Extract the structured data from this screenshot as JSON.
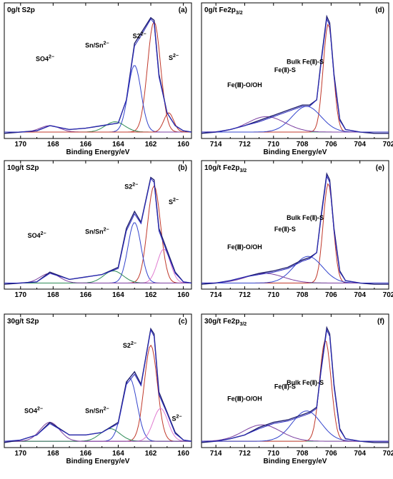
{
  "chart_data": [
    {
      "type": "line",
      "title": "0g/t S2p",
      "panel_letter": "(a)",
      "xlabel": "Binding Energy/eV",
      "xlim": [
        171,
        159.5
      ],
      "x_ticks": [
        "170",
        "168",
        "166",
        "164",
        "162",
        "160"
      ],
      "baseline": 0.05,
      "series": [
        {
          "color": "#1f1f6e",
          "role": "raw",
          "x": [
            171,
            170,
            169,
            168.2,
            167,
            166,
            165,
            164,
            163.5,
            163,
            162.6,
            162,
            161.8,
            161.5,
            161,
            160.5,
            160,
            159.5
          ],
          "y": [
            0.04,
            0.05,
            0.06,
            0.1,
            0.07,
            0.08,
            0.1,
            0.12,
            0.3,
            0.74,
            0.82,
            0.94,
            0.92,
            0.5,
            0.2,
            0.1,
            0.06,
            0.05
          ]
        },
        {
          "color": "#2b2bbf",
          "role": "fit",
          "x": [
            171,
            170,
            169,
            168.2,
            167,
            166,
            165,
            164,
            163.5,
            163,
            162.6,
            162,
            161.8,
            161.5,
            161,
            160.5,
            160,
            159.5
          ],
          "y": [
            0.05,
            0.05,
            0.06,
            0.1,
            0.07,
            0.08,
            0.1,
            0.12,
            0.3,
            0.72,
            0.8,
            0.93,
            0.9,
            0.48,
            0.2,
            0.1,
            0.06,
            0.05
          ]
        },
        {
          "color": "#c0392b",
          "role": "component",
          "peak": 161.8,
          "height": 0.86,
          "width": 0.4
        },
        {
          "color": "#3344cc",
          "role": "component",
          "peak": 163.0,
          "height": 0.52,
          "width": 0.4
        },
        {
          "color": "#2e8b57",
          "role": "component",
          "peak": 164.2,
          "height": 0.08,
          "width": 0.6
        },
        {
          "color": "#7b3fa0",
          "role": "component",
          "peak": 168.2,
          "height": 0.05,
          "width": 0.6
        },
        {
          "color": "#c0392b",
          "role": "component",
          "peak": 160.9,
          "height": 0.15,
          "width": 0.3
        }
      ],
      "annotations": [
        {
          "text": "SO4",
          "sup": "2−",
          "x": 168.5
        },
        {
          "text": "Sn/Sn",
          "sup": "2−",
          "x": 165.3
        },
        {
          "text": "S2",
          "sup": "2−",
          "x": 162.7
        },
        {
          "text": "S",
          "sup": "2−",
          "x": 160.6
        }
      ]
    },
    {
      "type": "line",
      "title": "10g/t S2p",
      "panel_letter": "(b)",
      "xlabel": "",
      "xlim": [
        171,
        159.5
      ],
      "x_ticks": [
        "170",
        "168",
        "166",
        "164",
        "162",
        "160"
      ],
      "baseline": 0.05,
      "series": [
        {
          "color": "#1f1f6e",
          "role": "raw",
          "x": [
            171,
            170,
            169,
            168.2,
            167,
            166,
            165,
            164,
            163.5,
            163,
            162.6,
            162,
            161.8,
            161.5,
            161,
            160.5,
            160,
            159.5
          ],
          "y": [
            0.04,
            0.05,
            0.06,
            0.14,
            0.08,
            0.1,
            0.12,
            0.18,
            0.5,
            0.64,
            0.55,
            0.92,
            0.9,
            0.5,
            0.32,
            0.14,
            0.06,
            0.05
          ]
        },
        {
          "color": "#2b2bbf",
          "role": "fit",
          "x": [
            171,
            170,
            169,
            168.2,
            167,
            166,
            165,
            164,
            163.5,
            163,
            162.6,
            162,
            161.8,
            161.5,
            161,
            160.5,
            160,
            159.5
          ],
          "y": [
            0.05,
            0.05,
            0.06,
            0.13,
            0.08,
            0.1,
            0.12,
            0.17,
            0.48,
            0.62,
            0.54,
            0.91,
            0.88,
            0.48,
            0.3,
            0.13,
            0.06,
            0.05
          ]
        },
        {
          "color": "#c0392b",
          "role": "component",
          "peak": 161.8,
          "height": 0.8,
          "width": 0.4
        },
        {
          "color": "#3344cc",
          "role": "component",
          "peak": 163.0,
          "height": 0.5,
          "width": 0.4
        },
        {
          "color": "#e07bd0",
          "role": "component",
          "peak": 161.2,
          "height": 0.28,
          "width": 0.4
        },
        {
          "color": "#2e8b57",
          "role": "component",
          "peak": 164.3,
          "height": 0.1,
          "width": 0.6
        },
        {
          "color": "#7b3fa0",
          "role": "component",
          "peak": 168.2,
          "height": 0.08,
          "width": 0.6
        }
      ],
      "annotations": [
        {
          "text": "SO4",
          "sup": "2−",
          "x": 169.0
        },
        {
          "text": "Sn/Sn",
          "sup": "2−",
          "x": 165.3
        },
        {
          "text": "S2",
          "sup": "2−",
          "x": 163.2
        },
        {
          "text": "S",
          "sup": "2−",
          "x": 160.6
        }
      ]
    },
    {
      "type": "line",
      "title": "30g/t S2p",
      "panel_letter": "(c)",
      "xlabel": "Binding Energy/eV",
      "xlim": [
        171,
        159.5
      ],
      "x_ticks": [
        "170",
        "168",
        "166",
        "164",
        "162",
        "160"
      ],
      "baseline": 0.05,
      "series": [
        {
          "color": "#1f1f6e",
          "role": "raw",
          "x": [
            171,
            170,
            169,
            168.2,
            167,
            166,
            165,
            164,
            163.5,
            163,
            162.6,
            162,
            161.8,
            161.5,
            161,
            160.5,
            160,
            159.5
          ],
          "y": [
            0.04,
            0.06,
            0.1,
            0.2,
            0.1,
            0.1,
            0.12,
            0.2,
            0.52,
            0.6,
            0.5,
            0.94,
            0.9,
            0.44,
            0.28,
            0.12,
            0.06,
            0.05
          ]
        },
        {
          "color": "#2b2bbf",
          "role": "fit",
          "x": [
            171,
            170,
            169,
            168.2,
            167,
            166,
            165,
            164,
            163.5,
            163,
            162.6,
            162,
            161.8,
            161.5,
            161,
            160.5,
            160,
            159.5
          ],
          "y": [
            0.05,
            0.06,
            0.1,
            0.19,
            0.1,
            0.1,
            0.12,
            0.19,
            0.5,
            0.58,
            0.49,
            0.93,
            0.88,
            0.42,
            0.27,
            0.11,
            0.06,
            0.05
          ]
        },
        {
          "color": "#c0392b",
          "role": "component",
          "peak": 162.0,
          "height": 0.76,
          "width": 0.4
        },
        {
          "color": "#3344cc",
          "role": "component",
          "peak": 163.3,
          "height": 0.5,
          "width": 0.45
        },
        {
          "color": "#e07bd0",
          "role": "component",
          "peak": 161.4,
          "height": 0.26,
          "width": 0.45
        },
        {
          "color": "#2e8b57",
          "role": "component",
          "peak": 164.5,
          "height": 0.1,
          "width": 0.6
        },
        {
          "color": "#7b3fa0",
          "role": "component",
          "peak": 168.2,
          "height": 0.15,
          "width": 0.6
        }
      ],
      "annotations": [
        {
          "text": "SO4",
          "sup": "2−",
          "x": 169.2
        },
        {
          "text": "Sn/Sn",
          "sup": "2−",
          "x": 165.3
        },
        {
          "text": "S2",
          "sup": "2−",
          "x": 163.3
        },
        {
          "text": "S",
          "sup": "2−",
          "x": 160.4
        }
      ]
    },
    {
      "type": "line",
      "title": "0g/t Fe2p",
      "title_sub": "3/2",
      "panel_letter": "(d)",
      "xlabel": "Binding Energy/eV",
      "xlim": [
        715,
        702
      ],
      "x_ticks": [
        "714",
        "712",
        "710",
        "708",
        "706",
        "704",
        "702"
      ],
      "baseline": 0.05,
      "series": [
        {
          "color": "#1f1f6e",
          "role": "raw",
          "x": [
            715,
            714,
            713,
            712,
            711,
            710,
            709,
            708,
            707.5,
            707,
            706.7,
            706.3,
            706.1,
            705.8,
            705.4,
            705,
            704,
            703,
            702
          ],
          "y": [
            0.04,
            0.05,
            0.07,
            0.1,
            0.14,
            0.18,
            0.22,
            0.26,
            0.26,
            0.3,
            0.6,
            0.95,
            0.9,
            0.5,
            0.15,
            0.07,
            0.05,
            0.04,
            0.04
          ]
        },
        {
          "color": "#2b2bbf",
          "role": "fit",
          "x": [
            715,
            714,
            713,
            712,
            711,
            710,
            709,
            708,
            707.5,
            707,
            706.7,
            706.3,
            706.1,
            705.8,
            705.4,
            705,
            704,
            703,
            702
          ],
          "y": [
            0.05,
            0.05,
            0.07,
            0.1,
            0.13,
            0.17,
            0.21,
            0.25,
            0.25,
            0.3,
            0.58,
            0.93,
            0.88,
            0.48,
            0.14,
            0.07,
            0.05,
            0.05,
            0.05
          ]
        },
        {
          "color": "#c0392b",
          "role": "component",
          "peak": 706.2,
          "height": 0.84,
          "width": 0.35
        },
        {
          "color": "#3344cc",
          "role": "component",
          "peak": 707.7,
          "height": 0.2,
          "width": 1.0
        },
        {
          "color": "#7b3fa0",
          "role": "component",
          "peak": 710.5,
          "height": 0.12,
          "width": 1.3
        }
      ],
      "annotations": [
        {
          "text": "Bulk Fe(Ⅱ)-S",
          "sup": "",
          "x": 707.8
        },
        {
          "text": "Fe(Ⅱ)-S",
          "sup": "",
          "x": 709.2
        },
        {
          "text": "Fe(Ⅲ)-O/OH",
          "sup": "",
          "x": 712.0
        }
      ]
    },
    {
      "type": "line",
      "title": "10g/t Fe2p",
      "title_sub": "3/2",
      "panel_letter": "(e)",
      "xlabel": "",
      "xlim": [
        715,
        702
      ],
      "x_ticks": [
        "714",
        "712",
        "710",
        "708",
        "706",
        "704",
        "702"
      ],
      "baseline": 0.05,
      "series": [
        {
          "color": "#1f1f6e",
          "role": "raw",
          "x": [
            715,
            714,
            713,
            712,
            711,
            710,
            709,
            708,
            707.5,
            707,
            706.7,
            706.3,
            706.1,
            705.8,
            705.4,
            705,
            704,
            703,
            702
          ],
          "y": [
            0.04,
            0.05,
            0.07,
            0.1,
            0.13,
            0.15,
            0.18,
            0.24,
            0.26,
            0.3,
            0.6,
            0.95,
            0.9,
            0.5,
            0.15,
            0.07,
            0.05,
            0.04,
            0.04
          ]
        },
        {
          "color": "#2b2bbf",
          "role": "fit",
          "x": [
            715,
            714,
            713,
            712,
            711,
            710,
            709,
            708,
            707.5,
            707,
            706.7,
            706.3,
            706.1,
            705.8,
            705.4,
            705,
            704,
            703,
            702
          ],
          "y": [
            0.05,
            0.05,
            0.07,
            0.1,
            0.12,
            0.14,
            0.17,
            0.23,
            0.25,
            0.3,
            0.58,
            0.93,
            0.88,
            0.48,
            0.14,
            0.07,
            0.05,
            0.05,
            0.05
          ]
        },
        {
          "color": "#c0392b",
          "role": "component",
          "peak": 706.2,
          "height": 0.82,
          "width": 0.35
        },
        {
          "color": "#3344cc",
          "role": "component",
          "peak": 707.6,
          "height": 0.22,
          "width": 1.0
        },
        {
          "color": "#7b3fa0",
          "role": "component",
          "peak": 710.6,
          "height": 0.08,
          "width": 1.3
        }
      ],
      "annotations": [
        {
          "text": "Bulk Fe(Ⅱ)-S",
          "sup": "",
          "x": 707.8
        },
        {
          "text": "Fe(Ⅱ)-S",
          "sup": "",
          "x": 709.2
        },
        {
          "text": "Fe(Ⅲ)-O/OH",
          "sup": "",
          "x": 712.0
        }
      ]
    },
    {
      "type": "line",
      "title": "30g/t Fe2p",
      "title_sub": "3/2",
      "panel_letter": "(f)",
      "xlabel": "Binding Energy/eV",
      "xlim": [
        715,
        702
      ],
      "x_ticks": [
        "714",
        "712",
        "710",
        "708",
        "706",
        "704",
        "702"
      ],
      "baseline": 0.05,
      "series": [
        {
          "color": "#1f1f6e",
          "role": "raw",
          "x": [
            715,
            714,
            713,
            712,
            711,
            710,
            709,
            708,
            707.5,
            707,
            706.7,
            706.3,
            706.1,
            705.8,
            705.4,
            705,
            704,
            703,
            702
          ],
          "y": [
            0.04,
            0.05,
            0.07,
            0.1,
            0.16,
            0.2,
            0.22,
            0.26,
            0.28,
            0.32,
            0.62,
            0.95,
            0.9,
            0.5,
            0.15,
            0.07,
            0.05,
            0.04,
            0.04
          ]
        },
        {
          "color": "#2b2bbf",
          "role": "fit",
          "x": [
            715,
            714,
            713,
            712,
            711,
            710,
            709,
            708,
            707.5,
            707,
            706.7,
            706.3,
            706.1,
            705.8,
            705.4,
            705,
            704,
            703,
            702
          ],
          "y": [
            0.05,
            0.05,
            0.07,
            0.1,
            0.15,
            0.19,
            0.21,
            0.25,
            0.27,
            0.31,
            0.6,
            0.93,
            0.88,
            0.48,
            0.14,
            0.07,
            0.05,
            0.05,
            0.05
          ]
        },
        {
          "color": "#c0392b",
          "role": "component",
          "peak": 706.4,
          "height": 0.8,
          "width": 0.4
        },
        {
          "color": "#3344cc",
          "role": "component",
          "peak": 707.7,
          "height": 0.24,
          "width": 1.0
        },
        {
          "color": "#7b3fa0",
          "role": "component",
          "peak": 710.8,
          "height": 0.13,
          "width": 1.3
        }
      ],
      "annotations": [
        {
          "text": "Bulk Fe(Ⅱ)-S",
          "sup": "",
          "x": 707.8
        },
        {
          "text": "Fe(Ⅱ)-S",
          "sup": "",
          "x": 709.2
        },
        {
          "text": "Fe(Ⅲ)-O/OH",
          "sup": "",
          "x": 712.0
        }
      ]
    }
  ]
}
